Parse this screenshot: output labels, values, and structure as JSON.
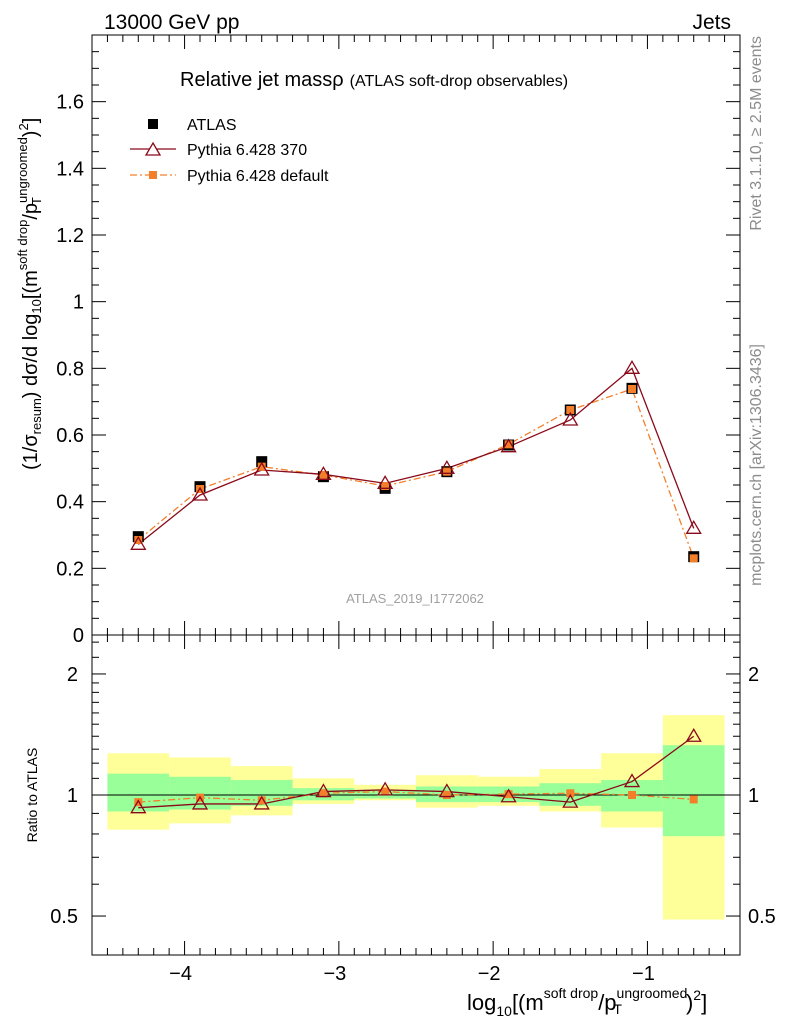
{
  "header": {
    "energy_label": "13000 GeV pp",
    "category_label": "Jets"
  },
  "side_labels": {
    "rivet": "Rivet 3.1.10, ≥ 2.5M events",
    "mcplots": "mcplots.cern.ch [arXiv:1306.3436]"
  },
  "colors": {
    "atlas": "#000000",
    "pythia_370": "#8b0a1a",
    "pythia_default": "#f47f2a",
    "band_inner": "#99ff99",
    "band_outer": "#ffff99"
  },
  "chart_data": [
    {
      "type": "line",
      "panel": "main",
      "title_main": "Relative jet mass",
      "title_rho": "ρ",
      "subtitle": "(ATLAS soft-drop observables)",
      "analysis_label": "ATLAS_2019_I1772062",
      "ylabel": "(1/σresum) dσ/d log10[(m^soft drop/pT^ungroomed)²]",
      "ylim": [
        0,
        1.8
      ],
      "xlim": [
        -4.6,
        -0.4
      ],
      "y_ticks": [
        "0",
        "0.2",
        "0.4",
        "0.6",
        "0.8",
        "1",
        "1.2",
        "1.4",
        "1.6"
      ],
      "y_tick_values": [
        0,
        0.2,
        0.4,
        0.6,
        0.8,
        1.0,
        1.2,
        1.4,
        1.6
      ],
      "legend_position": "top-left",
      "x": [
        -4.3,
        -3.9,
        -3.5,
        -3.1,
        -2.7,
        -2.3,
        -1.9,
        -1.5,
        -1.1,
        -0.7
      ],
      "series": [
        {
          "name": "ATLAS",
          "style": "marker-square",
          "values": [
            0.295,
            0.445,
            0.52,
            0.475,
            0.44,
            0.49,
            0.57,
            0.675,
            0.74,
            0.235
          ]
        },
        {
          "name": "Pythia 6.428 370",
          "style": "line-triangle",
          "values": [
            0.272,
            0.42,
            0.495,
            0.482,
            0.455,
            0.5,
            0.565,
            0.645,
            0.8,
            0.32
          ]
        },
        {
          "name": "Pythia 6.428 default",
          "style": "dashdot-square",
          "values": [
            0.285,
            0.438,
            0.505,
            0.48,
            0.447,
            0.49,
            0.572,
            0.675,
            0.738,
            0.23
          ]
        }
      ]
    },
    {
      "type": "line",
      "panel": "ratio",
      "ylabel": "Ratio to ATLAS",
      "yscale": "log",
      "ylim": [
        0.4,
        2.5
      ],
      "xlim": [
        -4.6,
        -0.4
      ],
      "x_ticks": [
        "−4",
        "−3",
        "−2",
        "−1"
      ],
      "x_tick_values": [
        -4,
        -3,
        -2,
        -1
      ],
      "y_ticks": [
        "0.5",
        "1",
        "2"
      ],
      "y_tick_values": [
        0.5,
        1,
        2
      ],
      "xlabel": "log10[(m^soft drop/pT^ungroomed)²]",
      "bin_edges": [
        -4.5,
        -4.1,
        -3.7,
        -3.3,
        -2.9,
        -2.5,
        -2.1,
        -1.7,
        -1.3,
        -0.9,
        -0.5
      ],
      "band_inner": {
        "low": [
          0.91,
          0.92,
          0.94,
          0.97,
          0.98,
          0.96,
          0.96,
          0.94,
          0.91,
          0.79
        ],
        "high": [
          1.13,
          1.11,
          1.09,
          1.04,
          1.03,
          1.05,
          1.05,
          1.07,
          1.09,
          1.33
        ]
      },
      "band_outer": {
        "low": [
          0.82,
          0.85,
          0.89,
          0.95,
          0.97,
          0.93,
          0.94,
          0.91,
          0.83,
          0.49
        ],
        "high": [
          1.27,
          1.24,
          1.18,
          1.1,
          1.06,
          1.12,
          1.11,
          1.16,
          1.27,
          1.58
        ]
      },
      "x": [
        -4.3,
        -3.9,
        -3.5,
        -3.1,
        -2.7,
        -2.3,
        -1.9,
        -1.5,
        -1.1,
        -0.7
      ],
      "series": [
        {
          "name": "Pythia 6.428 370",
          "style": "line-triangle",
          "values": [
            0.93,
            0.95,
            0.95,
            1.02,
            1.03,
            1.02,
            0.99,
            0.96,
            1.08,
            1.4
          ]
        },
        {
          "name": "Pythia 6.428 default",
          "style": "dashdot-square",
          "values": [
            0.96,
            0.985,
            0.97,
            1.01,
            1.02,
            1.0,
            1.005,
            1.01,
            1.0,
            0.975
          ]
        }
      ]
    }
  ]
}
